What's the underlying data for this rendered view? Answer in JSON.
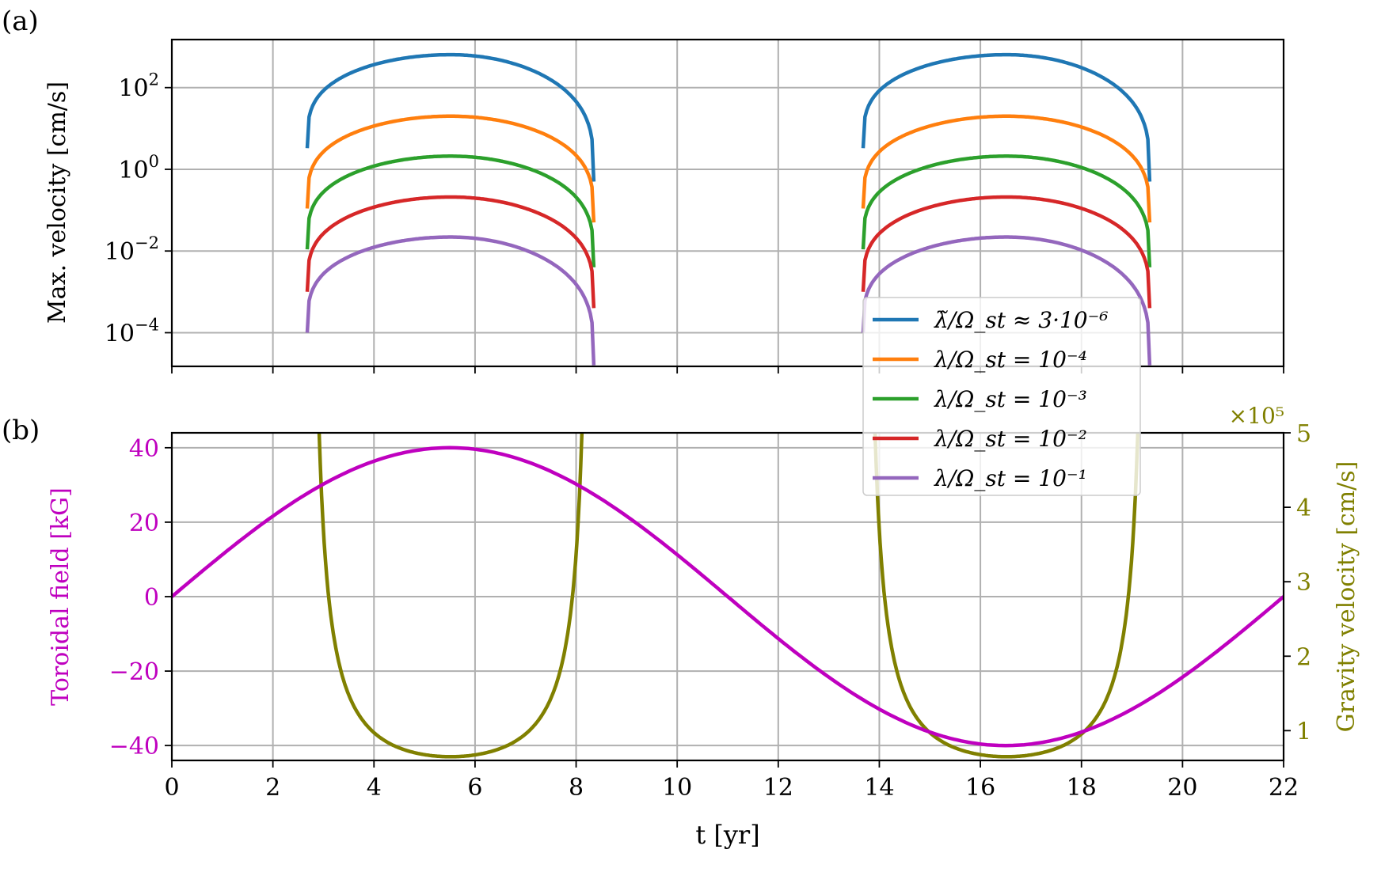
{
  "panel_labels": {
    "a": "(a)",
    "b": "(b)"
  },
  "chart_data": [
    {
      "type": "line",
      "panel": "(a)",
      "title": "",
      "xlabel": "",
      "ylabel": "Max. velocity [cm/s]",
      "yscale": "log",
      "xlim": [
        0,
        22
      ],
      "ylim": [
        1.5e-05,
        1500
      ],
      "xticks": [
        0,
        2,
        4,
        6,
        8,
        10,
        12,
        14,
        16,
        18,
        20,
        22
      ],
      "yticks": [
        {
          "value": 0.0001,
          "base": "10",
          "exp": "−4"
        },
        {
          "value": 0.01,
          "base": "10",
          "exp": "−2"
        },
        {
          "value": 1,
          "base": "10",
          "exp": "0"
        },
        {
          "value": 100,
          "base": "10",
          "exp": "2"
        }
      ],
      "grid": true,
      "legend_position": "center-right",
      "cycle_windows": [
        [
          2.68,
          8.35
        ],
        [
          13.68,
          19.35
        ]
      ],
      "series": [
        {
          "name": "λ̃/Ω_st ≈ 3·10⁻⁶",
          "color": "#1f77b4",
          "peak": 640,
          "start": 3.3,
          "end": 0.5
        },
        {
          "name": "λ/Ω_st = 10⁻⁴",
          "color": "#ff7f0e",
          "peak": 20,
          "start": 0.11,
          "end": 0.05
        },
        {
          "name": "λ/Ω_st = 10⁻³",
          "color": "#2ca02c",
          "peak": 2.1,
          "start": 0.011,
          "end": 0.004
        },
        {
          "name": "λ/Ω_st = 10⁻²",
          "color": "#d62728",
          "peak": 0.21,
          "start": 0.001,
          "end": 0.0004
        },
        {
          "name": "λ/Ω_st = 10⁻¹",
          "color": "#9467bd",
          "peak": 0.022,
          "start": 0.0001,
          "end": 1.6e-05
        }
      ]
    },
    {
      "type": "line",
      "panel": "(b)",
      "title": "",
      "xlabel": "t [yr]",
      "ylabel": "Toroidal field [kG]",
      "ylabel_right": "Gravity velocity [cm/s]",
      "right_axis_multiplier": "×10⁵",
      "xlim": [
        0,
        22
      ],
      "ylim": [
        -44,
        44
      ],
      "ylim_right": [
        0.6,
        5.0
      ],
      "xticks": [
        0,
        2,
        4,
        6,
        8,
        10,
        12,
        14,
        16,
        18,
        20,
        22
      ],
      "yticks": [
        -40,
        -20,
        0,
        20,
        40
      ],
      "yticks_right": [
        1,
        2,
        3,
        4,
        5
      ],
      "ytick_labels": [
        "−40",
        "−20",
        "0",
        "20",
        "40"
      ],
      "grid": true,
      "series": [
        {
          "name": "",
          "axis": "left",
          "color": "#bf00bf",
          "kind": "sine",
          "amplitude": 40,
          "period": 22
        },
        {
          "name": "",
          "axis": "right",
          "color": "#808000",
          "kind": "gravity",
          "min": 0.65,
          "windows": [
            [
              2.68,
              8.35
            ],
            [
              13.68,
              19.35
            ]
          ]
        }
      ]
    }
  ]
}
